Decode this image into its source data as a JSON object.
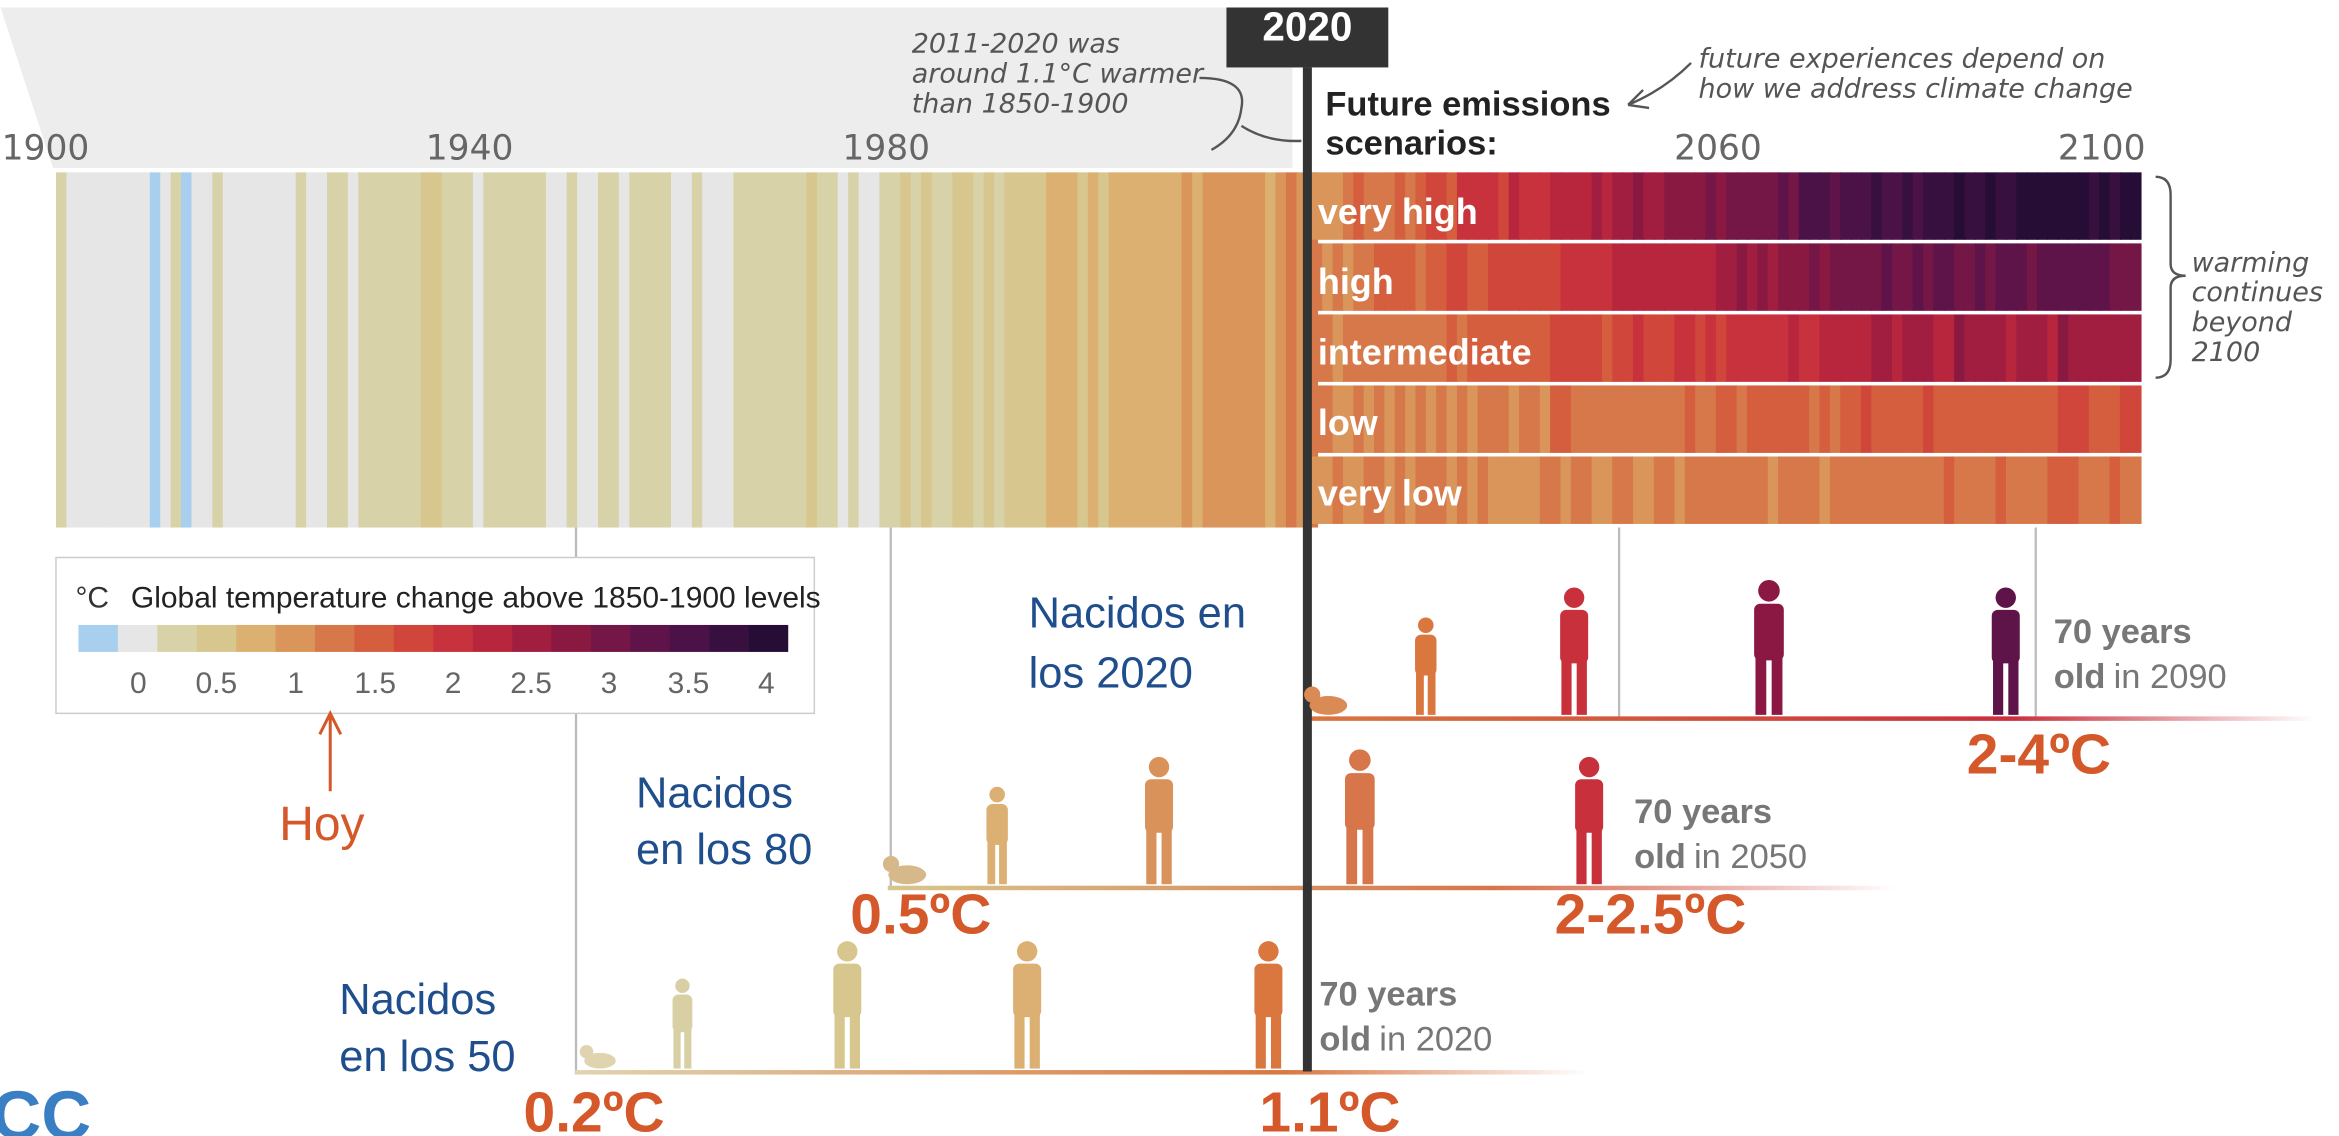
{
  "header": {
    "year_marker": "2020",
    "past_note": [
      "2011-2020 was",
      "around 1.1°C warmer",
      "than 1850-1900"
    ],
    "future_note": [
      "future experiences depend on",
      "how we address climate change"
    ],
    "scenarios_title": [
      "Future emissions",
      "scenarios:"
    ]
  },
  "axis_years": [
    "1900",
    "1940",
    "1980",
    "2060",
    "2100"
  ],
  "scenarios": [
    "very high",
    "high",
    "intermediate",
    "low",
    "very low"
  ],
  "side_note": [
    "warming",
    "continues",
    "beyond",
    "2100"
  ],
  "legend": {
    "unit": "°C",
    "title": "Global temperature change above 1850-1900 levels",
    "ticks": [
      "0",
      "0.5",
      "1",
      "1.5",
      "2",
      "2.5",
      "3",
      "3.5",
      "4"
    ]
  },
  "marker": "Hoy",
  "generations": [
    {
      "label": [
        "Nacidos en",
        "los 2020"
      ],
      "age": "70 years",
      "age_note": [
        "old",
        "in 2090"
      ],
      "temps": [
        "2-4ºC"
      ]
    },
    {
      "label": [
        "Nacidos",
        "en los 80"
      ],
      "age": "70 years",
      "age_note": [
        "old",
        "in 2050"
      ],
      "temps": [
        "0.5ºC",
        "2-2.5ºC"
      ]
    },
    {
      "label": [
        "Nacidos",
        "en los 50"
      ],
      "age": "70 years",
      "age_note": [
        "old",
        "in 2020"
      ],
      "temps": [
        "0.2ºC",
        "1.1ºC"
      ]
    }
  ],
  "logo": "CC"
}
